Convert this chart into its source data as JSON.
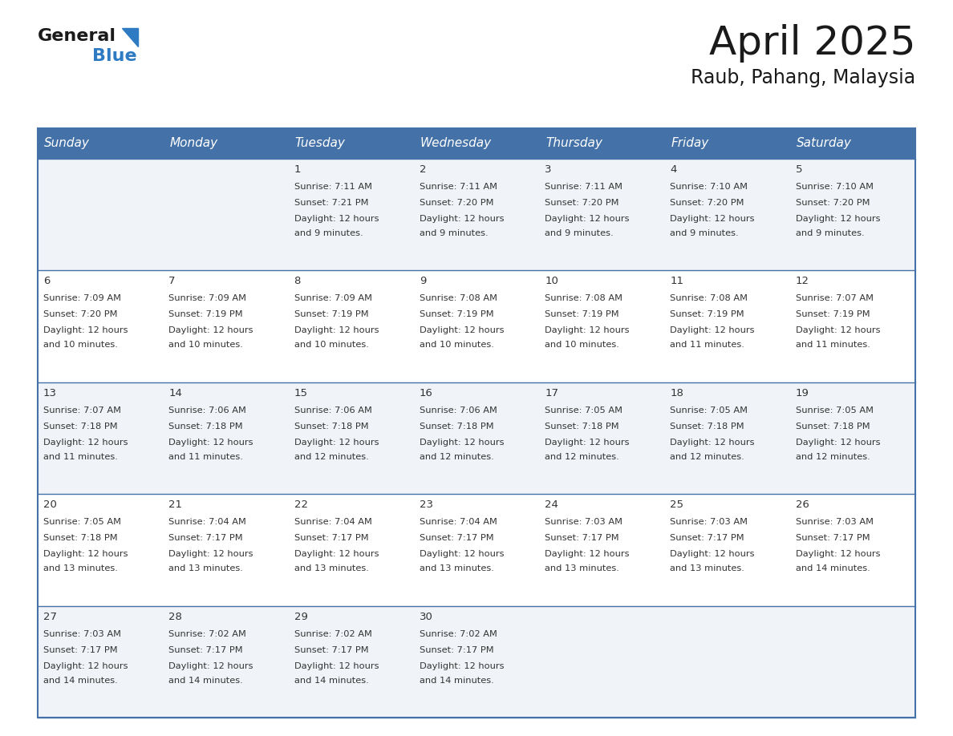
{
  "title": "April 2025",
  "subtitle": "Raub, Pahang, Malaysia",
  "header_bg_color": "#4472a8",
  "header_text_color": "#ffffff",
  "header_days": [
    "Sunday",
    "Monday",
    "Tuesday",
    "Wednesday",
    "Thursday",
    "Friday",
    "Saturday"
  ],
  "row_bg_even": "#f0f4f8",
  "row_bg_odd": "#ffffff",
  "cell_border_color": "#4472a8",
  "text_color": "#333333",
  "title_color": "#1a1a1a",
  "logo_general_color": "#1a1a1a",
  "logo_blue_color": "#2e7bc4",
  "days": [
    {
      "day": 1,
      "col": 2,
      "row": 0,
      "sunrise": "7:11 AM",
      "sunset": "7:21 PM",
      "daylight": "12 hours and 9 minutes."
    },
    {
      "day": 2,
      "col": 3,
      "row": 0,
      "sunrise": "7:11 AM",
      "sunset": "7:20 PM",
      "daylight": "12 hours and 9 minutes."
    },
    {
      "day": 3,
      "col": 4,
      "row": 0,
      "sunrise": "7:11 AM",
      "sunset": "7:20 PM",
      "daylight": "12 hours and 9 minutes."
    },
    {
      "day": 4,
      "col": 5,
      "row": 0,
      "sunrise": "7:10 AM",
      "sunset": "7:20 PM",
      "daylight": "12 hours and 9 minutes."
    },
    {
      "day": 5,
      "col": 6,
      "row": 0,
      "sunrise": "7:10 AM",
      "sunset": "7:20 PM",
      "daylight": "12 hours and 9 minutes."
    },
    {
      "day": 6,
      "col": 0,
      "row": 1,
      "sunrise": "7:09 AM",
      "sunset": "7:20 PM",
      "daylight": "12 hours and 10 minutes."
    },
    {
      "day": 7,
      "col": 1,
      "row": 1,
      "sunrise": "7:09 AM",
      "sunset": "7:19 PM",
      "daylight": "12 hours and 10 minutes."
    },
    {
      "day": 8,
      "col": 2,
      "row": 1,
      "sunrise": "7:09 AM",
      "sunset": "7:19 PM",
      "daylight": "12 hours and 10 minutes."
    },
    {
      "day": 9,
      "col": 3,
      "row": 1,
      "sunrise": "7:08 AM",
      "sunset": "7:19 PM",
      "daylight": "12 hours and 10 minutes."
    },
    {
      "day": 10,
      "col": 4,
      "row": 1,
      "sunrise": "7:08 AM",
      "sunset": "7:19 PM",
      "daylight": "12 hours and 10 minutes."
    },
    {
      "day": 11,
      "col": 5,
      "row": 1,
      "sunrise": "7:08 AM",
      "sunset": "7:19 PM",
      "daylight": "12 hours and 11 minutes."
    },
    {
      "day": 12,
      "col": 6,
      "row": 1,
      "sunrise": "7:07 AM",
      "sunset": "7:19 PM",
      "daylight": "12 hours and 11 minutes."
    },
    {
      "day": 13,
      "col": 0,
      "row": 2,
      "sunrise": "7:07 AM",
      "sunset": "7:18 PM",
      "daylight": "12 hours and 11 minutes."
    },
    {
      "day": 14,
      "col": 1,
      "row": 2,
      "sunrise": "7:06 AM",
      "sunset": "7:18 PM",
      "daylight": "12 hours and 11 minutes."
    },
    {
      "day": 15,
      "col": 2,
      "row": 2,
      "sunrise": "7:06 AM",
      "sunset": "7:18 PM",
      "daylight": "12 hours and 12 minutes."
    },
    {
      "day": 16,
      "col": 3,
      "row": 2,
      "sunrise": "7:06 AM",
      "sunset": "7:18 PM",
      "daylight": "12 hours and 12 minutes."
    },
    {
      "day": 17,
      "col": 4,
      "row": 2,
      "sunrise": "7:05 AM",
      "sunset": "7:18 PM",
      "daylight": "12 hours and 12 minutes."
    },
    {
      "day": 18,
      "col": 5,
      "row": 2,
      "sunrise": "7:05 AM",
      "sunset": "7:18 PM",
      "daylight": "12 hours and 12 minutes."
    },
    {
      "day": 19,
      "col": 6,
      "row": 2,
      "sunrise": "7:05 AM",
      "sunset": "7:18 PM",
      "daylight": "12 hours and 12 minutes."
    },
    {
      "day": 20,
      "col": 0,
      "row": 3,
      "sunrise": "7:05 AM",
      "sunset": "7:18 PM",
      "daylight": "12 hours and 13 minutes."
    },
    {
      "day": 21,
      "col": 1,
      "row": 3,
      "sunrise": "7:04 AM",
      "sunset": "7:17 PM",
      "daylight": "12 hours and 13 minutes."
    },
    {
      "day": 22,
      "col": 2,
      "row": 3,
      "sunrise": "7:04 AM",
      "sunset": "7:17 PM",
      "daylight": "12 hours and 13 minutes."
    },
    {
      "day": 23,
      "col": 3,
      "row": 3,
      "sunrise": "7:04 AM",
      "sunset": "7:17 PM",
      "daylight": "12 hours and 13 minutes."
    },
    {
      "day": 24,
      "col": 4,
      "row": 3,
      "sunrise": "7:03 AM",
      "sunset": "7:17 PM",
      "daylight": "12 hours and 13 minutes."
    },
    {
      "day": 25,
      "col": 5,
      "row": 3,
      "sunrise": "7:03 AM",
      "sunset": "7:17 PM",
      "daylight": "12 hours and 13 minutes."
    },
    {
      "day": 26,
      "col": 6,
      "row": 3,
      "sunrise": "7:03 AM",
      "sunset": "7:17 PM",
      "daylight": "12 hours and 14 minutes."
    },
    {
      "day": 27,
      "col": 0,
      "row": 4,
      "sunrise": "7:03 AM",
      "sunset": "7:17 PM",
      "daylight": "12 hours and 14 minutes."
    },
    {
      "day": 28,
      "col": 1,
      "row": 4,
      "sunrise": "7:02 AM",
      "sunset": "7:17 PM",
      "daylight": "12 hours and 14 minutes."
    },
    {
      "day": 29,
      "col": 2,
      "row": 4,
      "sunrise": "7:02 AM",
      "sunset": "7:17 PM",
      "daylight": "12 hours and 14 minutes."
    },
    {
      "day": 30,
      "col": 3,
      "row": 4,
      "sunrise": "7:02 AM",
      "sunset": "7:17 PM",
      "daylight": "12 hours and 14 minutes."
    }
  ]
}
